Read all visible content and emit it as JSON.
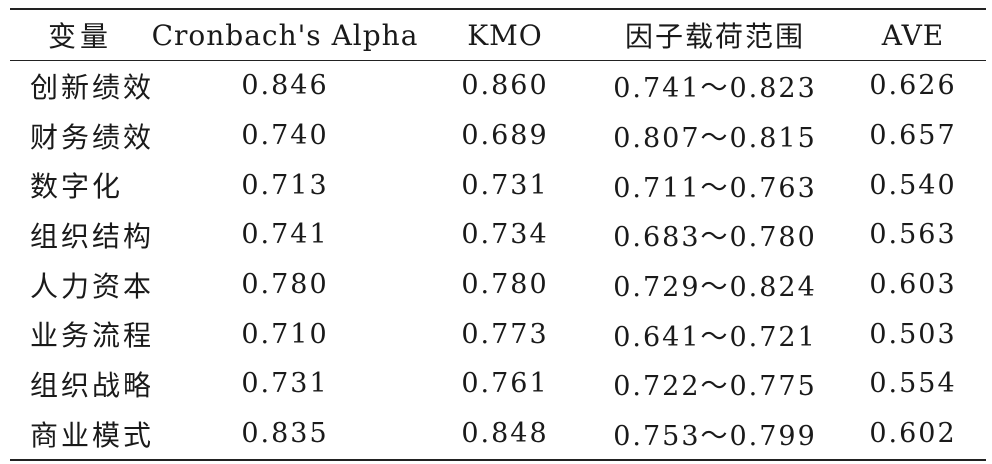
{
  "table": {
    "headers": {
      "variable": "变量",
      "alpha": "Cronbach's Alpha",
      "kmo": "KMO",
      "loading": "因子载荷范围",
      "ave": "AVE"
    },
    "rows": [
      {
        "variable": "创新绩效",
        "alpha": "0.846",
        "kmo": "0.860",
        "loading": "0.741～0.823",
        "ave": "0.626"
      },
      {
        "variable": "财务绩效",
        "alpha": "0.740",
        "kmo": "0.689",
        "loading": "0.807～0.815",
        "ave": "0.657"
      },
      {
        "variable": "数字化",
        "alpha": "0.713",
        "kmo": "0.731",
        "loading": "0.711～0.763",
        "ave": "0.540"
      },
      {
        "variable": "组织结构",
        "alpha": "0.741",
        "kmo": "0.734",
        "loading": "0.683～0.780",
        "ave": "0.563"
      },
      {
        "variable": "人力资本",
        "alpha": "0.780",
        "kmo": "0.780",
        "loading": "0.729～0.824",
        "ave": "0.603"
      },
      {
        "variable": "业务流程",
        "alpha": "0.710",
        "kmo": "0.773",
        "loading": "0.641～0.721",
        "ave": "0.503"
      },
      {
        "variable": "组织战略",
        "alpha": "0.731",
        "kmo": "0.761",
        "loading": "0.722～0.775",
        "ave": "0.554"
      },
      {
        "variable": "商业模式",
        "alpha": "0.835",
        "kmo": "0.848",
        "loading": "0.753～0.799",
        "ave": "0.602"
      }
    ]
  }
}
